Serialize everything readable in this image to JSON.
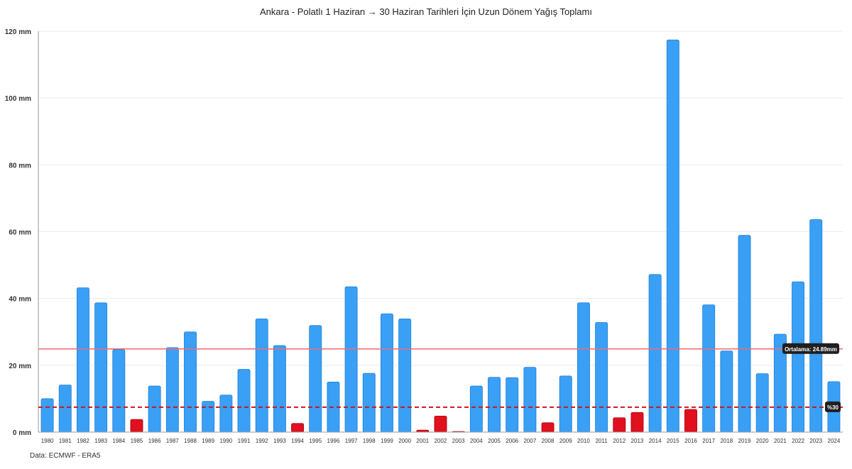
{
  "title": "Ankara - Polatlı 1 Haziran → 30 Haziran Tarihleri İçin Uzun Dönem Yağış Toplamı",
  "source": "Data: ECMWF - ERA5",
  "colors": {
    "normal_bar": "#3aa0f5",
    "normal_border": "#1e7fd6",
    "low_bar": "#e0101e",
    "low_border": "#b30010",
    "mean_line": "#f06a74",
    "threshold_line": "#d0141e",
    "grid": "#ececec"
  },
  "chart_data": {
    "type": "bar",
    "title": "Ankara - Polatlı 1 Haziran → 30 Haziran Tarihleri İçin Uzun Dönem Yağış Toplamı",
    "xlabel": "",
    "ylabel": "",
    "ylim": [
      0,
      120
    ],
    "yticks": [
      0,
      20,
      40,
      60,
      80,
      100,
      120
    ],
    "ytick_labels": [
      "0 mm",
      "20 mm",
      "40 mm",
      "60 mm",
      "80 mm",
      "100 mm",
      "120 mm"
    ],
    "grid": "horizontal",
    "categories": [
      "1980",
      "1981",
      "1982",
      "1983",
      "1984",
      "1985",
      "1986",
      "1987",
      "1988",
      "1989",
      "1990",
      "1991",
      "1992",
      "1993",
      "1994",
      "1995",
      "1996",
      "1997",
      "1998",
      "1999",
      "2000",
      "2001",
      "2002",
      "2003",
      "2004",
      "2005",
      "2006",
      "2007",
      "2008",
      "2009",
      "2010",
      "2011",
      "2012",
      "2013",
      "2014",
      "2015",
      "2016",
      "2017",
      "2018",
      "2019",
      "2020",
      "2021",
      "2022",
      "2023",
      "2024"
    ],
    "values": [
      10.0,
      14.1,
      43.2,
      38.7,
      24.7,
      3.8,
      13.8,
      25.3,
      30.0,
      9.2,
      11.1,
      18.8,
      33.9,
      25.9,
      2.6,
      31.9,
      15.0,
      43.5,
      17.6,
      35.4,
      33.9,
      0.6,
      4.8,
      0.1,
      13.8,
      16.4,
      16.3,
      19.4,
      2.8,
      16.8,
      38.7,
      32.8,
      4.3,
      5.9,
      47.2,
      117.4,
      6.8,
      38.1,
      24.3,
      58.9,
      17.5,
      29.3,
      45.0,
      63.6,
      15.1
    ],
    "mean": 24.89,
    "mean_label": "Ortalama: 24.89mm",
    "threshold": 7.47,
    "threshold_label": "%30"
  }
}
